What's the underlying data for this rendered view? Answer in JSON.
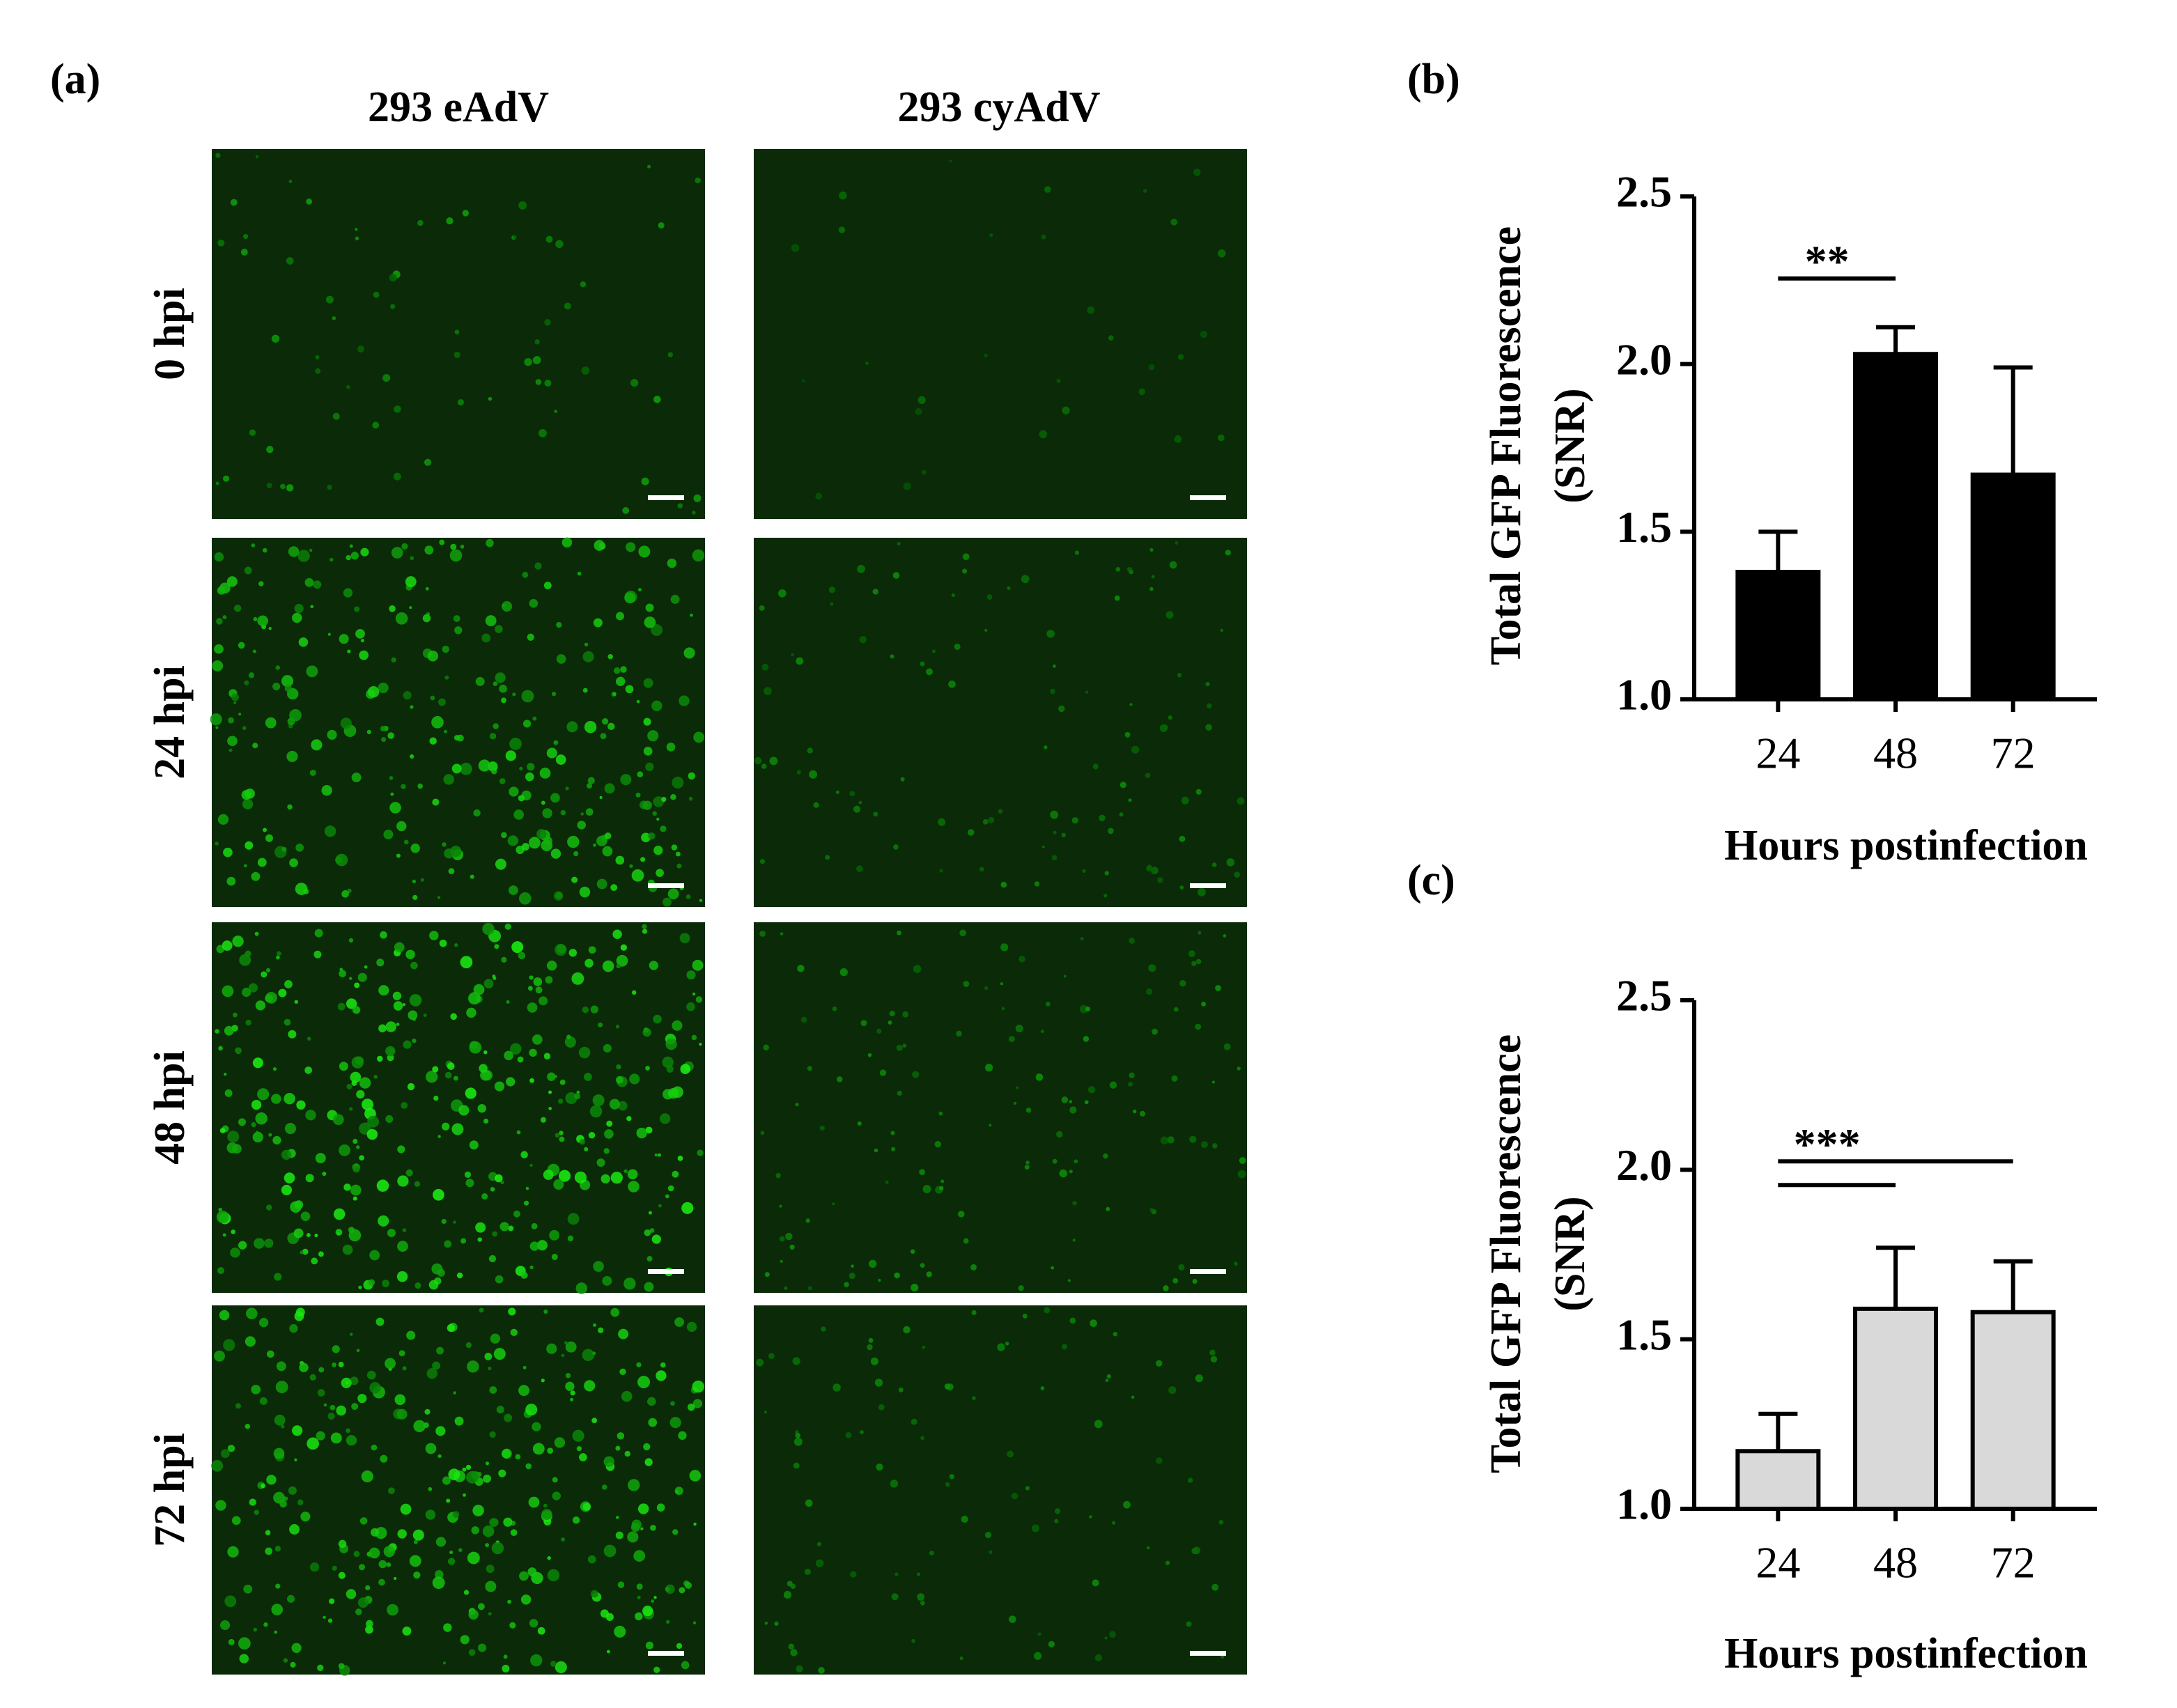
{
  "panels": {
    "a": {
      "label": "(a)",
      "columns": [
        "293 eAdV",
        "293 cyAdV"
      ],
      "rows": [
        "0 hpi",
        "24 hpi",
        "48 hpi",
        "72 hpi"
      ]
    }
  },
  "chart_data": [
    {
      "type": "bar",
      "panel_label": "(b)",
      "ylabel": [
        "Total GFP Fluorescence",
        "(SNR)"
      ],
      "xlabel": "Hours postinfection",
      "categories": [
        "24",
        "48",
        "72"
      ],
      "values": [
        1.38,
        2.03,
        1.67
      ],
      "errors": [
        0.12,
        0.08,
        0.32
      ],
      "color": "#000000",
      "ylim": [
        1.0,
        2.5
      ],
      "yticks": [
        {
          "value": 1.0,
          "label": "1.0"
        },
        1.5,
        {
          "value": 2.0,
          "label": "2.0"
        },
        2.5
      ],
      "significance": [
        {
          "text": "**",
          "between": [
            "24",
            "48"
          ]
        }
      ]
    },
    {
      "type": "bar",
      "panel_label": "(c)",
      "ylabel": [
        "Total GFP Fluorescence",
        "(SNR)"
      ],
      "xlabel": "Hours postinfection",
      "categories": [
        "24",
        "48",
        "72"
      ],
      "values": [
        1.17,
        1.59,
        1.58
      ],
      "errors": [
        0.11,
        0.18,
        0.15
      ],
      "color": "#d9d9d9",
      "ylim": [
        1.0,
        2.5
      ],
      "yticks": [
        {
          "value": 1.0,
          "label": "1.0"
        },
        1.5,
        {
          "value": 2.0,
          "label": "2.0"
        },
        2.5
      ],
      "significance": [
        {
          "text": "***",
          "between": [
            "24",
            "72"
          ]
        },
        {
          "between": [
            "24",
            "48"
          ]
        }
      ]
    }
  ]
}
